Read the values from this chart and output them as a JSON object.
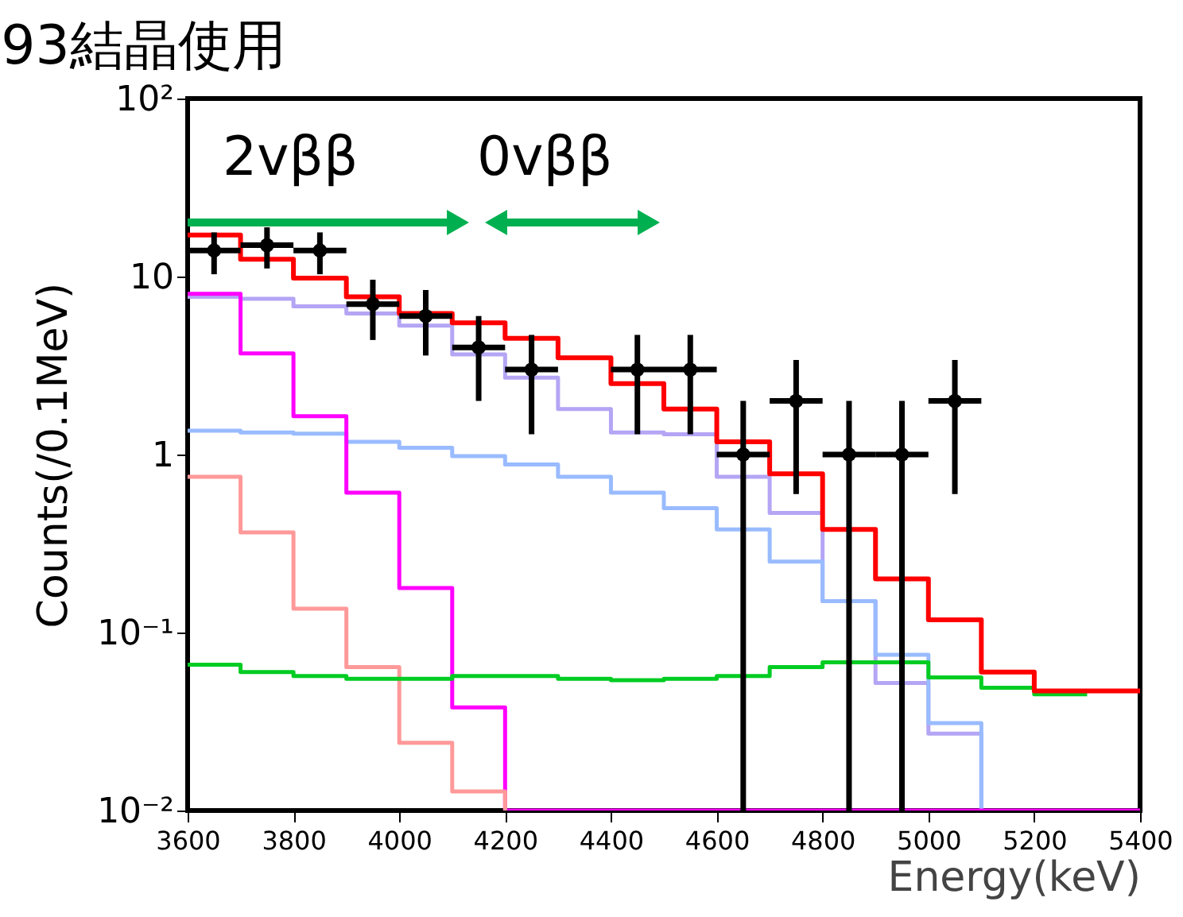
{
  "chart_data": {
    "type": "step",
    "title": "93結晶使用",
    "xlabel": "Energy(keV)",
    "ylabel": "Counts(/0.1MeV)",
    "x": [
      3600,
      3700,
      3800,
      3900,
      4000,
      4100,
      4200,
      4300,
      4400,
      4500,
      4600,
      4700,
      4800,
      4900,
      5000,
      5100,
      5200,
      5300,
      5400
    ],
    "series": [
      {
        "color": "#b4a5f5",
        "values": [
          7.7,
          7.5,
          6.8,
          6.2,
          5.3,
          3.65,
          2.7,
          1.8,
          1.33,
          1.3,
          0.75,
          0.47,
          0.15,
          0.052,
          0.027,
          0.01,
          null,
          null,
          null
        ]
      },
      {
        "color": "#99bbff",
        "values": [
          1.36,
          1.33,
          1.31,
          1.18,
          1.09,
          0.98,
          0.88,
          0.75,
          0.61,
          0.5,
          0.38,
          0.25,
          0.15,
          0.075,
          0.031,
          0.01,
          null,
          null,
          null
        ]
      },
      {
        "color": "#ff00ff",
        "values": [
          8.0,
          3.7,
          1.64,
          0.61,
          0.178,
          0.038,
          0.01,
          0.01,
          0.01,
          0.01,
          0.01,
          0.01,
          0.01,
          0.01,
          0.01,
          0.01,
          0.01,
          0.01,
          0.01
        ]
      },
      {
        "color": "#ff9999",
        "values": [
          0.75,
          0.365,
          0.136,
          0.064,
          0.024,
          0.0128,
          0.01,
          null,
          null,
          null,
          null,
          null,
          null,
          null,
          null,
          null,
          null,
          null,
          null
        ]
      },
      {
        "color": "#00cc22",
        "values": [
          0.066,
          0.06,
          0.057,
          0.055,
          0.055,
          0.057,
          0.057,
          0.055,
          0.054,
          0.055,
          0.057,
          0.064,
          0.068,
          0.068,
          0.056,
          0.049,
          0.045,
          0.045,
          null
        ]
      },
      {
        "color": "#ff0000",
        "values": [
          17.1,
          12.5,
          9.8,
          7.7,
          6.2,
          5.5,
          4.5,
          3.5,
          2.5,
          1.8,
          1.18,
          0.78,
          0.38,
          0.2,
          0.118,
          0.06,
          0.047,
          0.047,
          0.047
        ]
      },
      {
        "type": "scatter",
        "marker": "circle",
        "color": "#000000",
        "x": [
          3650,
          3750,
          3850,
          3950,
          4050,
          4150,
          4250,
          4450,
          4550,
          4650,
          4750,
          4850,
          4950,
          5050
        ],
        "values": [
          14,
          15,
          14,
          7,
          6,
          4,
          3,
          3,
          3,
          1,
          2,
          1,
          1,
          2
        ],
        "errors": [
          [
            10.3,
            17.7
          ],
          [
            11.1,
            18.9
          ],
          [
            10.3,
            17.7
          ],
          [
            4.4,
            9.6
          ],
          [
            3.6,
            8.4
          ],
          [
            2.0,
            6.0
          ],
          [
            1.3,
            4.7
          ],
          [
            1.3,
            4.7
          ],
          [
            1.3,
            4.7
          ],
          [
            0.01,
            2.0
          ],
          [
            0.6,
            3.4
          ],
          [
            0.01,
            2.0
          ],
          [
            0.01,
            2.0
          ],
          [
            0.6,
            3.4
          ]
        ],
        "xerrors": [
          50,
          50,
          50,
          50,
          50,
          50,
          50,
          50,
          50,
          50,
          50,
          50,
          50,
          50
        ]
      }
    ],
    "annotations": [
      "2vββ",
      "0vββ"
    ],
    "xlim": [
      3600,
      5400
    ],
    "xticks": [
      3600,
      3800,
      4000,
      4200,
      4400,
      4600,
      4800,
      5000,
      5200,
      5400
    ],
    "ylim": [
      0.01,
      100
    ],
    "yticks": [
      {
        "value": 0.01,
        "label": "10⁻²"
      },
      {
        "value": 0.1,
        "label": "10⁻¹"
      },
      1,
      10,
      {
        "value": 100,
        "label": "10²"
      }
    ],
    "log": true,
    "grid": false
  }
}
